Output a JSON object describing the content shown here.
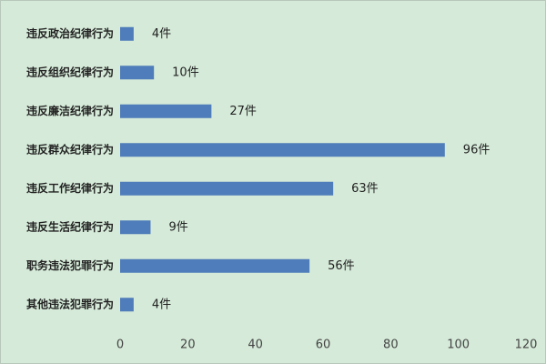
{
  "chart_data": {
    "type": "bar",
    "orientation": "horizontal",
    "categories": [
      "违反政治纪律行为",
      "违反组织纪律行为",
      "违反廉洁纪律行为",
      "违反群众纪律行为",
      "违反工作纪律行为",
      "违反生活纪律行为",
      "职务违法犯罪行为",
      "其他违法犯罪行为"
    ],
    "values": [
      4,
      10,
      27,
      96,
      63,
      9,
      56,
      4
    ],
    "value_labels": [
      "4件",
      "10件",
      "27件",
      "96件",
      "63件",
      "9件",
      "56件",
      "4件"
    ],
    "color": "#4f7cba",
    "xlim": [
      0,
      120
    ],
    "xticks": [
      0,
      20,
      40,
      60,
      80,
      100,
      120
    ],
    "grid": false
  }
}
